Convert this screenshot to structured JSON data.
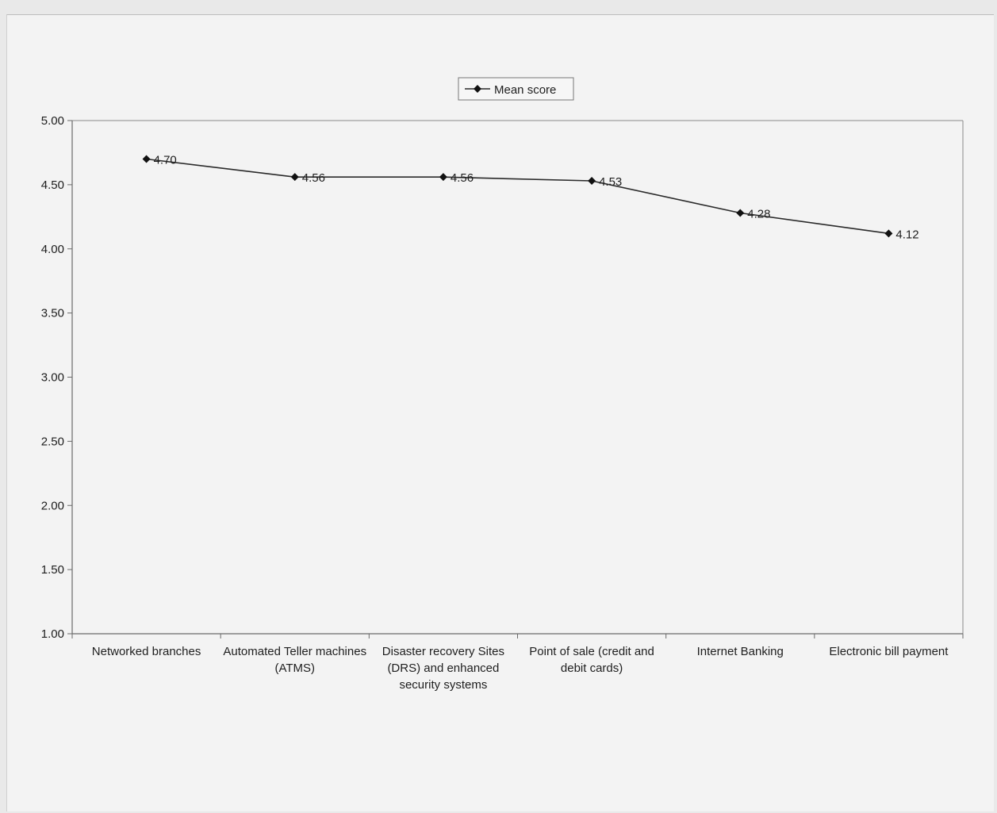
{
  "chart_data": {
    "type": "line",
    "categories": [
      "Networked branches",
      "Automated Teller machines (ATMS)",
      "Disaster recovery Sites (DRS) and enhanced security systems",
      "Point of sale (credit and debit cards)",
      "Internet Banking",
      "Electronic bill payment"
    ],
    "series": [
      {
        "name": "Mean score",
        "values": [
          4.7,
          4.56,
          4.56,
          4.53,
          4.28,
          4.12
        ]
      }
    ],
    "data_labels": [
      "4.70",
      "4.56",
      "4.56",
      "4.53",
      "4.28",
      "4.12"
    ],
    "y_ticks": [
      "5.00",
      "4.50",
      "4.00",
      "3.50",
      "3.00",
      "2.50",
      "2.00",
      "1.50",
      "1.00"
    ],
    "ylim": [
      1.0,
      5.0
    ],
    "title": "",
    "xlabel": "",
    "ylabel": "",
    "legend": {
      "position": "top-center",
      "label": "Mean score"
    },
    "grid": false,
    "colors": {
      "line": "#2a2a2a",
      "marker": "#111111",
      "axis": "#6a6a6a",
      "background": "#f3f3f3"
    }
  }
}
